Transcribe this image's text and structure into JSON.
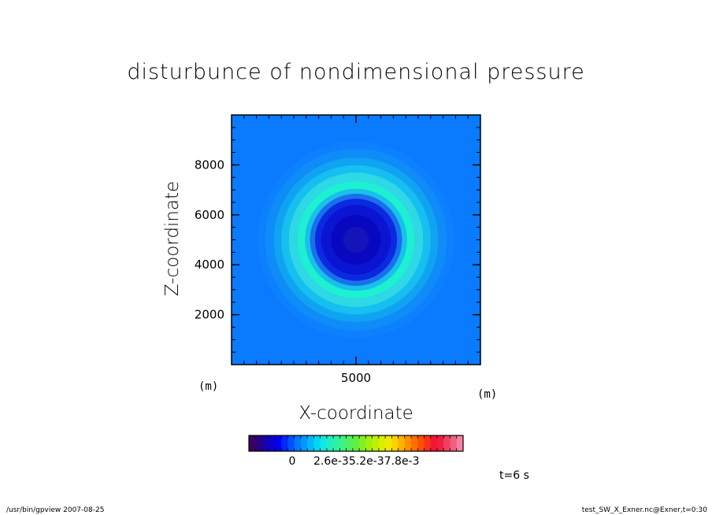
{
  "chart_data": {
    "type": "heatmap",
    "title": "disturbunce of nondimensional pressure",
    "xlabel": "X-coordinate",
    "ylabel": "Z-coordinate",
    "x_unit": "(m)",
    "y_unit": "(m)",
    "xlim": [
      0,
      10000
    ],
    "ylim": [
      0,
      10000
    ],
    "x_ticks": [
      "5000"
    ],
    "y_ticks": [
      "2000",
      "4000",
      "6000",
      "8000"
    ],
    "x_tick_values": [
      5000
    ],
    "y_tick_values": [
      2000,
      4000,
      6000,
      8000
    ],
    "field": {
      "center": [
        5000,
        5000
      ],
      "background_color": "#0a7aff",
      "rings": [
        {
          "radius": 3950,
          "color": "#0c80ff"
        },
        {
          "radius": 3650,
          "color": "#108cf8"
        },
        {
          "radius": 3300,
          "color": "#0fa4f2"
        },
        {
          "radius": 3000,
          "color": "#17bff0"
        },
        {
          "radius": 2700,
          "color": "#2ed8e4"
        },
        {
          "radius": 2350,
          "color": "#1ef0d2"
        },
        {
          "radius": 2050,
          "color": "#18c0ea"
        },
        {
          "radius": 1850,
          "color": "#1a70ec"
        },
        {
          "radius": 1650,
          "color": "#0a2ae0"
        },
        {
          "radius": 1400,
          "color": "#0a14d2"
        },
        {
          "radius": 1000,
          "color": "#0808c0"
        },
        {
          "radius": 520,
          "color": "#1414b8"
        }
      ]
    },
    "colorbar": {
      "labels": [
        "0",
        "2.6e-35.2e-37.8e-3"
      ],
      "colors": [
        "#3a0060",
        "#2a0080",
        "#1a00a8",
        "#0a00d0",
        "#0000f0",
        "#0028f8",
        "#0050ff",
        "#0078ff",
        "#0098ff",
        "#00b8ff",
        "#00d8f0",
        "#10e8e0",
        "#20f0c0",
        "#30f0a0",
        "#40f080",
        "#50f060",
        "#60f040",
        "#80f020",
        "#a0f010",
        "#c0f000",
        "#d8f000",
        "#f0e800",
        "#ffd000",
        "#ffb000",
        "#ff9000",
        "#ff7000",
        "#ff5000",
        "#f83020",
        "#f01830",
        "#f02040",
        "#f04060",
        "#f06080",
        "#f880a0"
      ]
    }
  },
  "timestamp": "t=6 s",
  "footer": {
    "left": "/usr/bin/gpview  2007-08-25",
    "right": "test_SW_X_Exner.nc@Exner,t=0:30"
  }
}
